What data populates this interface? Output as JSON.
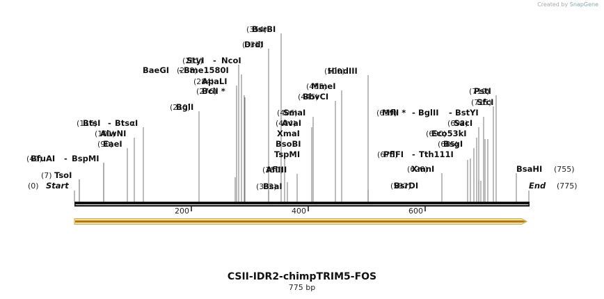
{
  "credit": {
    "prefix": "Created by",
    "brand": "SnapGene"
  },
  "title": "CSII-IDR2-chimpTRIM5-FOS",
  "subtitle": "775 bp",
  "scale_ticks": [
    "200",
    "400",
    "600"
  ],
  "start": {
    "pos": "(0)",
    "name": "Start"
  },
  "end": {
    "pos": "(775)",
    "name": "End"
  },
  "sites": [
    {
      "pos": "(354)",
      "names": [
        "BsrBI"
      ]
    },
    {
      "pos": "(331)",
      "names": [
        "DrdI"
      ]
    },
    {
      "pos": "(291)",
      "names": [
        "StyI",
        "NcoI"
      ]
    },
    {
      "pos": "(288)",
      "names": [
        "BaeGI",
        "Bme1580I"
      ]
    },
    {
      "pos": "(284)",
      "names": [
        "ApaLI"
      ]
    },
    {
      "pos": "(276)",
      "names": [
        "BclI *"
      ]
    },
    {
      "pos": "(210)",
      "names": [
        "BglI"
      ]
    },
    {
      "pos": "(116)",
      "names": [
        "BtsI",
        "BtsαI"
      ]
    },
    {
      "pos": "(101)",
      "names": [
        "AlwNI"
      ]
    },
    {
      "pos": "(90)",
      "names": [
        "EaeI"
      ]
    },
    {
      "pos": "(49)",
      "names": [
        "BfuAI",
        "BspMI"
      ]
    },
    {
      "pos": "(7)",
      "names": [
        "TsoI"
      ]
    },
    {
      "pos": "(500)",
      "names": [
        "HindIII"
      ]
    },
    {
      "pos": "(455)",
      "names": [
        "MmeI"
      ]
    },
    {
      "pos": "(445)",
      "names": [
        "BbvCI"
      ]
    },
    {
      "pos": "(406)",
      "names": [
        "SmaI"
      ]
    },
    {
      "pos": "(404)",
      "names": [
        "AvaI"
      ]
    },
    {
      "pos": "",
      "names": [
        "XmaI"
      ]
    },
    {
      "pos": "",
      "names": [
        "BsoBI"
      ]
    },
    {
      "pos": "",
      "names": [
        "TspMI"
      ]
    },
    {
      "pos": "(380)",
      "names": [
        "AflIII"
      ]
    },
    {
      "pos": "(362)",
      "names": [
        "BsaI"
      ]
    },
    {
      "pos": "(719)",
      "names": [
        "PstI"
      ]
    },
    {
      "pos": "(715)",
      "names": [
        "SfcI"
      ]
    },
    {
      "pos": "(699)",
      "names": [
        "MflI *",
        "BglII",
        "BstYI"
      ]
    },
    {
      "pos": "(692)",
      "names": [
        "SacI"
      ]
    },
    {
      "pos": "(690)",
      "names": [
        "Eco53kI"
      ]
    },
    {
      "pos": "(685)",
      "names": [
        "BsgI"
      ]
    },
    {
      "pos": "(675)",
      "names": [
        "PflFI",
        "Tth111I"
      ]
    },
    {
      "pos": "(626)",
      "names": [
        "XmnI"
      ]
    },
    {
      "pos": "(597)",
      "names": [
        "BsrDI"
      ]
    },
    {
      "pos": "(755)",
      "names": [
        "BsaHI"
      ]
    }
  ],
  "colors": {
    "feature_arrow": "#f5c242",
    "feature_edge": "#8a6a10",
    "backbone": "#111111"
  }
}
